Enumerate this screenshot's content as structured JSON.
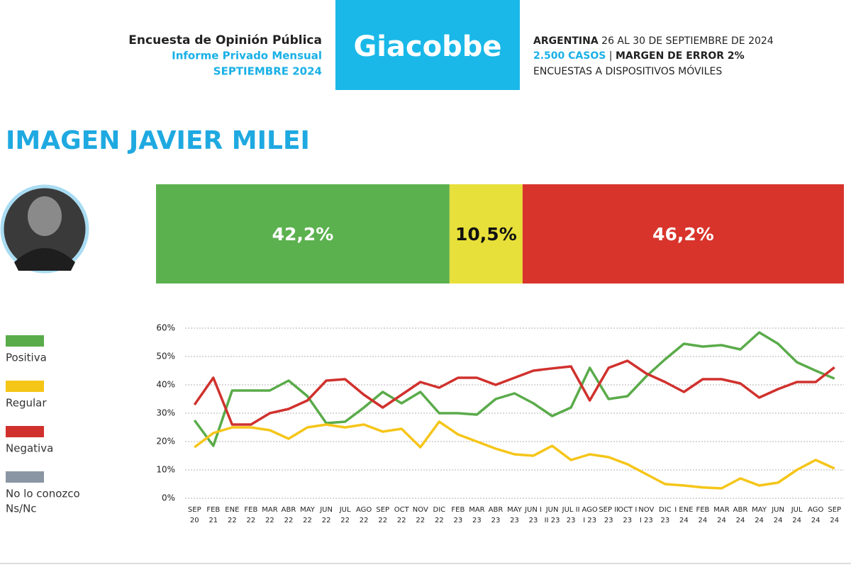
{
  "header": {
    "left": [
      "Encuesta de Opinión Pública",
      "Informe Privado Mensual",
      "SEPTIEMBRE 2024"
    ],
    "brand": "Giacobbe",
    "right": {
      "country": "ARGENTINA",
      "dates": "26 AL 30 DE SEPTIEMBRE DE 2024",
      "cases": "2.500 CASOS",
      "separator": "|",
      "margin": "MARGEN DE ERROR 2%",
      "method": "ENCUESTAS A DISPOSITIVOS MÓVILES"
    }
  },
  "title": "IMAGEN JAVIER MILEI",
  "chart_data": [
    {
      "type": "stacked_bar",
      "values": [
        42.2,
        10.5,
        46.2
      ],
      "value_labels": [
        "42,2%",
        "10,5%",
        "46,2%"
      ],
      "colors": [
        "#5cb14f",
        "#e8e03a",
        "#d8342c"
      ],
      "label_colors": [
        "#ffffff",
        "#111111",
        "#ffffff"
      ]
    },
    {
      "type": "line",
      "categories": [
        [
          "SEP",
          "20"
        ],
        [
          "FEB",
          "21"
        ],
        [
          "ENE",
          "22"
        ],
        [
          "FEB",
          "22"
        ],
        [
          "MAR",
          "22"
        ],
        [
          "ABR",
          "22"
        ],
        [
          "MAY",
          "22"
        ],
        [
          "JUN",
          "22"
        ],
        [
          "JUL",
          "22"
        ],
        [
          "AGO",
          "22"
        ],
        [
          "SEP",
          "22"
        ],
        [
          "OCT",
          "22"
        ],
        [
          "NOV",
          "22"
        ],
        [
          "DIC",
          "22"
        ],
        [
          "FEB",
          "23"
        ],
        [
          "MAR",
          "23"
        ],
        [
          "ABR",
          "23"
        ],
        [
          "MAY",
          "23"
        ],
        [
          "JUN I",
          "23"
        ],
        [
          "JUN",
          "II 23"
        ],
        [
          "JUL II",
          "23"
        ],
        [
          "AGO",
          "I 23"
        ],
        [
          "SEP II",
          "23"
        ],
        [
          "OCT I",
          "23"
        ],
        [
          "NOV",
          "I 23"
        ],
        [
          "DIC",
          "23"
        ],
        [
          "I ENE",
          "24"
        ],
        [
          "FEB",
          "24"
        ],
        [
          "MAR",
          "24"
        ],
        [
          "ABR",
          "24"
        ],
        [
          "MAY",
          "24"
        ],
        [
          "JUN",
          "24"
        ],
        [
          "JUL",
          "24"
        ],
        [
          "AGO",
          "24"
        ],
        [
          "SEP",
          "24"
        ]
      ],
      "series": [
        {
          "name": "Positiva",
          "color": "#5aab4a",
          "values": [
            27.5,
            18.5,
            38,
            38,
            38,
            41.5,
            36,
            26.5,
            27,
            32,
            37.5,
            33.5,
            37.5,
            30,
            30,
            29.5,
            35,
            37,
            33.5,
            29,
            32,
            46,
            35,
            36,
            43,
            49,
            54.5,
            53.5,
            54,
            52.5,
            58.5,
            54.5,
            48,
            45,
            42.2
          ]
        },
        {
          "name": "Regular",
          "color": "#f5c518",
          "values": [
            18,
            23,
            25,
            25,
            24,
            21,
            25,
            26,
            25,
            26,
            23.5,
            24.5,
            18,
            27,
            22.5,
            20,
            17.5,
            15.5,
            15,
            18.5,
            13.5,
            15.5,
            14.5,
            12,
            8.5,
            5,
            4.5,
            3.8,
            3.5,
            7,
            4.5,
            5.5,
            10,
            13.5,
            10.5
          ]
        },
        {
          "name": "Negativa",
          "color": "#d0312d",
          "values": [
            33,
            42.5,
            26,
            26,
            30,
            31.5,
            34.5,
            41.5,
            42,
            36.5,
            32,
            36.5,
            41,
            39,
            42.5,
            42.5,
            40,
            42.5,
            45,
            45.8,
            46.5,
            34.5,
            46,
            48.5,
            44,
            41,
            37.5,
            42,
            42,
            40.5,
            35.5,
            38.5,
            41,
            41,
            46.2
          ]
        }
      ],
      "legend_extra": {
        "name": [
          "No lo conozco",
          "Ns/Nc"
        ],
        "color": "#8a96a3"
      },
      "ylim": [
        0,
        60
      ],
      "yticks": [
        {
          "value": 0,
          "label": "0%"
        },
        {
          "value": 10,
          "label": "10%"
        },
        {
          "value": 20,
          "label": "20%"
        },
        {
          "value": 30,
          "label": "30%"
        },
        {
          "value": 40,
          "label": "40%"
        },
        {
          "value": 50,
          "label": "50%"
        },
        {
          "value": 60,
          "label": "60%"
        }
      ],
      "grid": true
    }
  ]
}
